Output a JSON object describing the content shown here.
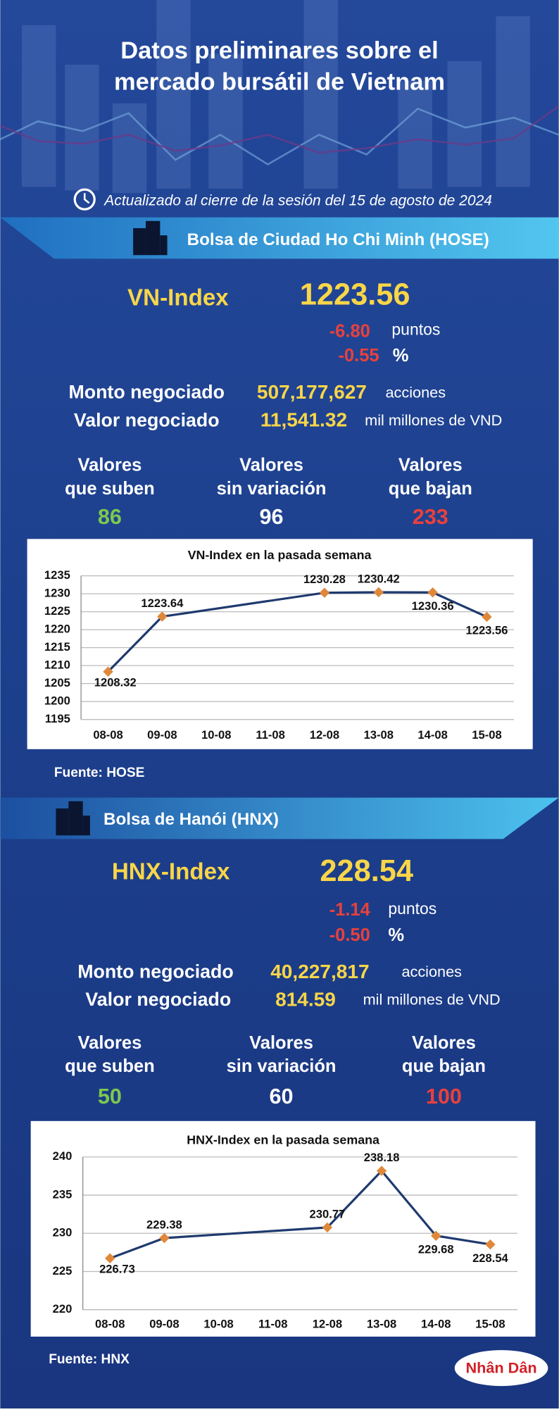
{
  "header": {
    "title": [
      "Datos preliminares sobre el",
      "mercado bursátil de Vietnam"
    ],
    "updated": "Actualizado al cierre de la sesión del 15 de agosto de 2024"
  },
  "sections": [
    {
      "exchange": "Bolsa de Ciudad Ho Chi Minh (HOSE)",
      "index_name": "VN-Index",
      "index_value": "1223.56",
      "change": "-6.80",
      "change_unit": "puntos",
      "pct": "-0.55",
      "pct_unit": "%",
      "volume_label": "Monto negociado",
      "volume": "507,177,627",
      "volume_unit": "acciones",
      "value_label": "Valor negociado",
      "value": "11,541.32",
      "value_unit": "mil millones de VND",
      "up_label": [
        "Valores",
        "que suben"
      ],
      "up": "86",
      "flat_label": [
        "Valores",
        "sin variación"
      ],
      "flat": "96",
      "down_label": [
        "Valores",
        "que bajan"
      ],
      "down": "233",
      "source": "Fuente: HOSE"
    },
    {
      "exchange": "Bolsa de Hanói (HNX)",
      "index_name": "HNX-Index",
      "index_value": "228.54",
      "change": "-1.14",
      "change_unit": "puntos",
      "pct": "-0.50",
      "pct_unit": "%",
      "volume_label": "Monto negociado",
      "volume": "40,227,817",
      "volume_unit": "acciones",
      "value_label": "Valor negociado",
      "value": "814.59",
      "value_unit": "mil millones de VND",
      "up_label": [
        "Valores",
        "que suben"
      ],
      "up": "50",
      "flat_label": [
        "Valores",
        "sin variación"
      ],
      "flat": "60",
      "down_label": [
        "Valores",
        "que bajan"
      ],
      "down": "100",
      "source": "Fuente:  HNX"
    }
  ],
  "chart_data": [
    {
      "type": "line",
      "title": "VN-Index en la pasada semana",
      "categories": [
        "08-08",
        "09-08",
        "10-08",
        "11-08",
        "12-08",
        "13-08",
        "14-08",
        "15-08"
      ],
      "series": [
        {
          "x": [
            "08-08",
            "09-08",
            "12-08",
            "13-08",
            "14-08",
            "15-08"
          ],
          "values": [
            1208.32,
            1223.64,
            1230.28,
            1230.42,
            1230.36,
            1223.56
          ],
          "color": "#1f3a6e",
          "marker_color": "#e0883a"
        }
      ],
      "ylim": [
        1195,
        1235
      ],
      "yticks": [
        1195,
        1200,
        1205,
        1210,
        1215,
        1220,
        1225,
        1230,
        1235
      ],
      "grid": true
    },
    {
      "type": "line",
      "title": "HNX-Index en la pasada semana",
      "categories": [
        "08-08",
        "09-08",
        "10-08",
        "11-08",
        "12-08",
        "13-08",
        "14-08",
        "15-08"
      ],
      "series": [
        {
          "x": [
            "08-08",
            "09-08",
            "12-08",
            "13-08",
            "14-08",
            "15-08"
          ],
          "values": [
            226.73,
            229.38,
            230.77,
            238.18,
            229.68,
            228.54
          ],
          "color": "#1f3a6e",
          "marker_color": "#e0883a"
        }
      ],
      "ylim": [
        220,
        240
      ],
      "yticks": [
        220,
        225,
        230,
        235,
        240
      ],
      "grid": true
    }
  ],
  "footer": {
    "logo": "Nhân Dân"
  }
}
